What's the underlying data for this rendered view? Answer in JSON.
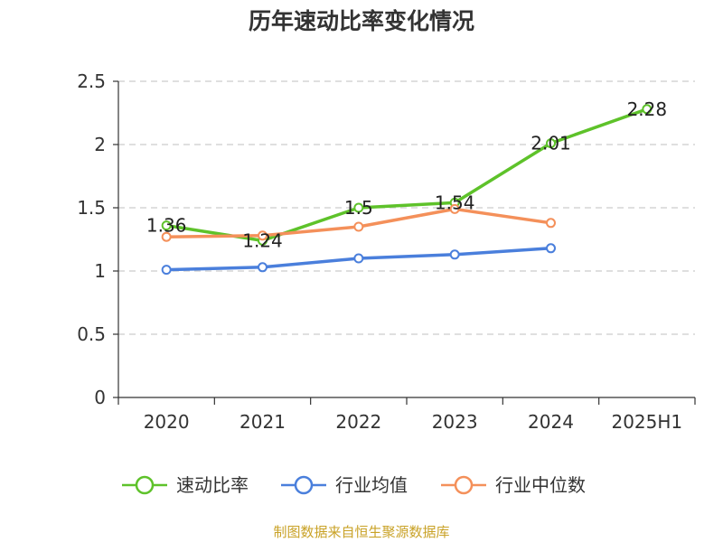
{
  "chart_data": {
    "type": "line",
    "title": "历年速动比率变化情况",
    "categories": [
      "2020",
      "2021",
      "2022",
      "2023",
      "2024",
      "2025H1"
    ],
    "ylim": [
      0,
      2.5
    ],
    "yticks": [
      "0",
      "0.5",
      "1",
      "1.5",
      "2",
      "2.5"
    ],
    "grid": true,
    "legend_position": "bottom",
    "series": [
      {
        "name": "速动比率",
        "color": "#5ec22a",
        "values": [
          1.36,
          1.24,
          1.5,
          1.54,
          2.01,
          2.28
        ],
        "labels": [
          "1.36",
          "1.24",
          "1.5",
          "1.54",
          "2.01",
          "2.28"
        ]
      },
      {
        "name": "行业均值",
        "color": "#4a7fdc",
        "values": [
          1.01,
          1.03,
          1.1,
          1.13,
          1.18,
          null
        ]
      },
      {
        "name": "行业中位数",
        "color": "#f4905a",
        "values": [
          1.27,
          1.28,
          1.35,
          1.49,
          1.38,
          null
        ]
      }
    ],
    "source": "制图数据来自恒生聚源数据库"
  }
}
